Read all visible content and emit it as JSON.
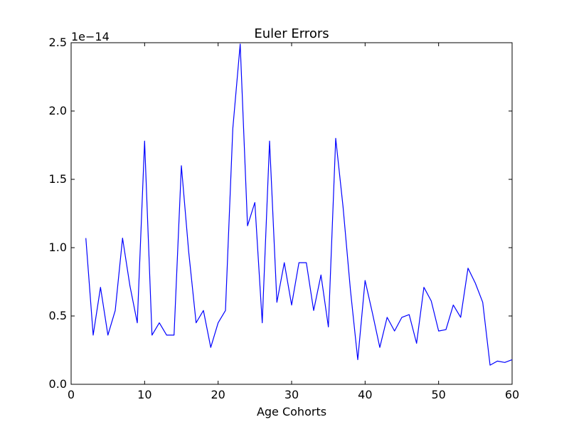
{
  "chart_data": {
    "type": "line",
    "title": "Euler Errors",
    "xlabel": "Age Cohorts",
    "ylabel": "",
    "offset_label": "1e−14",
    "xlim": [
      0,
      60
    ],
    "ylim": [
      0,
      2.5
    ],
    "xticks": [
      0,
      10,
      20,
      30,
      40,
      50,
      60
    ],
    "yticks": [
      0.0,
      0.5,
      1.0,
      1.5,
      2.0,
      2.5
    ],
    "ytick_labels": [
      "0.0",
      "0.5",
      "1.0",
      "1.5",
      "2.0",
      "2.5"
    ],
    "grid": false,
    "line_color": "#0000ff",
    "series": [
      {
        "x": [
          2,
          3,
          4,
          5,
          6,
          7,
          8,
          9,
          10,
          11,
          12,
          13,
          14,
          15,
          16,
          17,
          18,
          19,
          20,
          21,
          22,
          23,
          24,
          25,
          26,
          27,
          28,
          29,
          30,
          31,
          32,
          33,
          34,
          35,
          36,
          37,
          38,
          39,
          40,
          41,
          42,
          43,
          44,
          45,
          46,
          47,
          48,
          49,
          50,
          51,
          52,
          53,
          54,
          55,
          56,
          57,
          58,
          59,
          60
        ],
        "y": [
          1.07,
          0.36,
          0.71,
          0.36,
          0.54,
          1.07,
          0.72,
          0.45,
          1.78,
          0.36,
          0.45,
          0.36,
          0.36,
          1.6,
          0.97,
          0.45,
          0.54,
          0.27,
          0.45,
          0.54,
          1.87,
          2.49,
          1.16,
          1.33,
          0.45,
          1.78,
          0.6,
          0.89,
          0.58,
          0.89,
          0.89,
          0.54,
          0.8,
          0.42,
          1.8,
          1.3,
          0.69,
          0.18,
          0.76,
          0.52,
          0.27,
          0.49,
          0.39,
          0.49,
          0.51,
          0.3,
          0.71,
          0.61,
          0.39,
          0.4,
          0.58,
          0.49,
          0.85,
          0.74,
          0.6,
          0.14,
          0.17,
          0.16,
          0.18
        ]
      }
    ]
  }
}
